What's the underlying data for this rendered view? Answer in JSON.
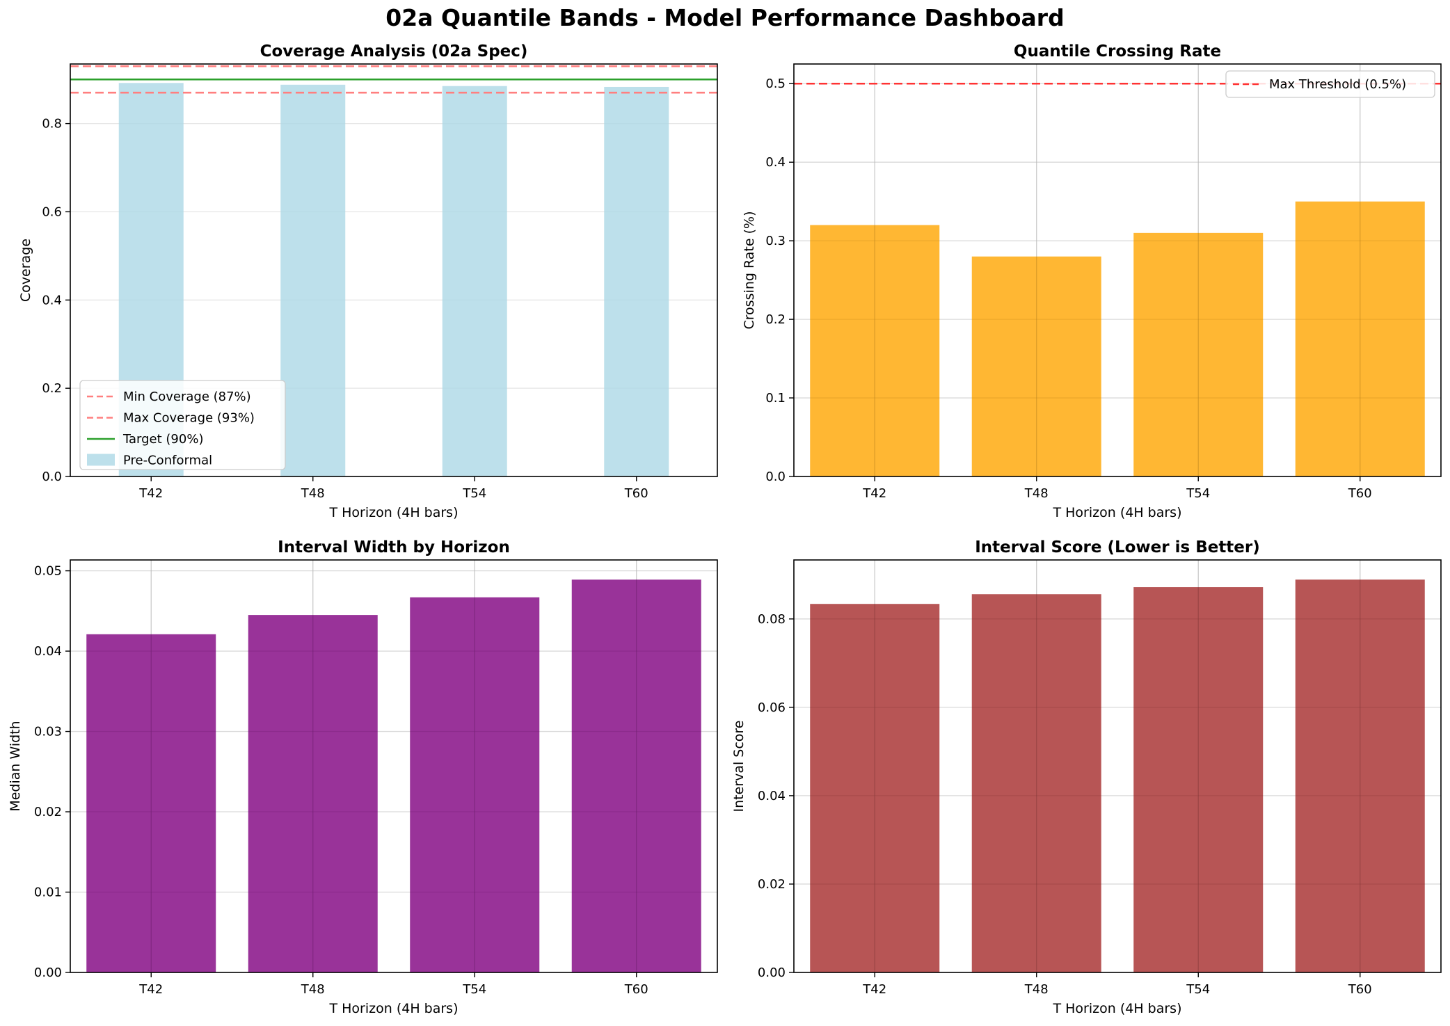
{
  "page_title": "02a Quantile Bands - Model Performance Dashboard",
  "colors": {
    "coverage_bar": "#add8e6",
    "crossing_bar": "#ffa500",
    "width_bar": "#800080",
    "score_bar": "#a52a2a",
    "min_max_line": "#ff7f7f",
    "target_line": "#2ca02c",
    "threshold_line": "#ff3333",
    "grid": "#e6e6e6"
  },
  "chart_data": [
    {
      "type": "bar",
      "title": "Coverage Analysis (02a Spec)",
      "xlabel": "T Horizon (4H bars)",
      "ylabel": "Coverage",
      "categories": [
        "T42",
        "T48",
        "T54",
        "T60"
      ],
      "series": [
        {
          "name": "Pre-Conformal",
          "values": [
            0.892,
            0.888,
            0.885,
            0.883
          ]
        }
      ],
      "bar_width": 0.4,
      "bar_alpha": 0.8,
      "ylim": [
        0,
        0.935
      ],
      "yticks": [
        "0.0",
        "0.2",
        "0.4",
        "0.6",
        "0.8"
      ],
      "reference_lines": [
        {
          "name": "Min Coverage (87%)",
          "y": 0.87,
          "style": "dashed"
        },
        {
          "name": "Max Coverage (93%)",
          "y": 0.93,
          "style": "dashed"
        },
        {
          "name": "Target (90%)",
          "y": 0.9,
          "style": "solid"
        }
      ],
      "grid": "y-only",
      "legend": "lower-left"
    },
    {
      "type": "bar",
      "title": "Quantile Crossing Rate",
      "xlabel": "T Horizon (4H bars)",
      "ylabel": "Crossing Rate (%)",
      "categories": [
        "T42",
        "T48",
        "T54",
        "T60"
      ],
      "series": [
        {
          "values": [
            0.32,
            0.28,
            0.31,
            0.35
          ]
        }
      ],
      "bar_width": 0.8,
      "bar_alpha": 0.8,
      "ylim": [
        0,
        0.525
      ],
      "yticks": [
        "0.0",
        "0.1",
        "0.2",
        "0.3",
        "0.4",
        "0.5"
      ],
      "reference_lines": [
        {
          "name": "Max Threshold (0.5%)",
          "y": 0.5,
          "style": "dashed"
        }
      ],
      "grid": "both",
      "legend": "upper-right"
    },
    {
      "type": "bar",
      "title": "Interval Width by Horizon",
      "xlabel": "T Horizon (4H bars)",
      "ylabel": "Median Width",
      "categories": [
        "T42",
        "T48",
        "T54",
        "T60"
      ],
      "series": [
        {
          "values": [
            0.0421,
            0.0445,
            0.0467,
            0.0489
          ]
        }
      ],
      "bar_width": 0.8,
      "bar_alpha": 0.8,
      "ylim": [
        0,
        0.05135
      ],
      "yticks": [
        "0.00",
        "0.01",
        "0.02",
        "0.03",
        "0.04",
        "0.05"
      ],
      "grid": "both"
    },
    {
      "type": "bar",
      "title": "Interval Score (Lower is Better)",
      "xlabel": "T Horizon (4H bars)",
      "ylabel": "Interval Score",
      "categories": [
        "T42",
        "T48",
        "T54",
        "T60"
      ],
      "series": [
        {
          "values": [
            0.0834,
            0.0856,
            0.0872,
            0.0889
          ]
        }
      ],
      "bar_width": 0.8,
      "bar_alpha": 0.8,
      "ylim": [
        0,
        0.09335
      ],
      "yticks": [
        "0.00",
        "0.02",
        "0.04",
        "0.06",
        "0.08"
      ],
      "grid": "both"
    }
  ]
}
